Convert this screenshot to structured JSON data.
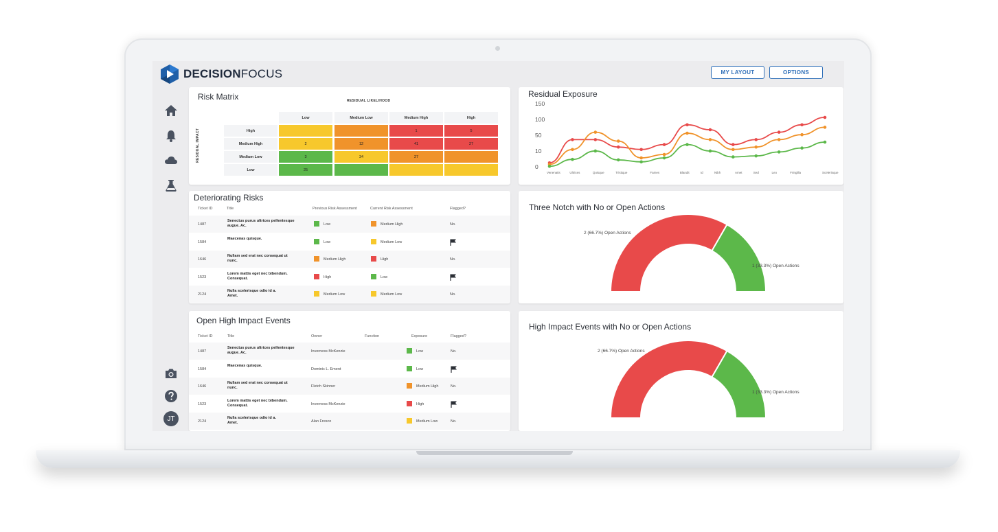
{
  "app": {
    "brand_bold": "DECISION",
    "brand_light": "FOCUS"
  },
  "header": {
    "my_layout": "MY LAYOUT",
    "options": "OPTIONS"
  },
  "user": {
    "initials": "JT"
  },
  "colors": {
    "red": "#e84a4a",
    "orange": "#f0932b",
    "yellow": "#f7c82c",
    "green": "#5cb84a",
    "accent": "#2f6fb8"
  },
  "risk_matrix": {
    "title": "Risk Matrix",
    "x_axis": "RESIDUAL LIKELIHOOD",
    "y_axis": "RESIDUAL IMPACT",
    "columns": [
      "Low",
      "Medium Low",
      "Medium High",
      "High"
    ],
    "rows": [
      {
        "label": "High",
        "cells": [
          {
            "v": "",
            "c": "yellow"
          },
          {
            "v": "",
            "c": "orange"
          },
          {
            "v": "1",
            "c": "red"
          },
          {
            "v": "5",
            "c": "red"
          }
        ]
      },
      {
        "label": "Medium High",
        "cells": [
          {
            "v": "2",
            "c": "yellow"
          },
          {
            "v": "12",
            "c": "orange"
          },
          {
            "v": "41",
            "c": "red"
          },
          {
            "v": "27",
            "c": "red"
          }
        ]
      },
      {
        "label": "Medium Low",
        "cells": [
          {
            "v": "3",
            "c": "green"
          },
          {
            "v": "34",
            "c": "yellow"
          },
          {
            "v": "27",
            "c": "orange"
          },
          {
            "v": "",
            "c": "orange"
          }
        ]
      },
      {
        "label": "Low",
        "cells": [
          {
            "v": "25",
            "c": "green"
          },
          {
            "v": "",
            "c": "green"
          },
          {
            "v": "",
            "c": "yellow"
          },
          {
            "v": "",
            "c": "yellow"
          }
        ]
      }
    ]
  },
  "residual_exposure": {
    "title": "Residual Exposure",
    "chart_data": {
      "type": "line",
      "y_ticks": [
        "150",
        "100",
        "50",
        "10",
        "0"
      ],
      "x": [
        "Venenatis",
        "Ultrices",
        "Quisque",
        "Tristique",
        "Fames",
        "Blandit",
        "Id",
        "Nibh",
        "Amet",
        "Sed",
        "Leo",
        "Fringilla",
        "Scelerisque"
      ],
      "series": [
        {
          "color": "red",
          "values": [
            8,
            55,
            55,
            40,
            35,
            45,
            85,
            75,
            45,
            55,
            70,
            85,
            100
          ]
        },
        {
          "color": "orange",
          "values": [
            5,
            35,
            70,
            52,
            18,
            25,
            68,
            55,
            35,
            40,
            55,
            65,
            80
          ]
        },
        {
          "color": "green",
          "values": [
            1,
            15,
            32,
            14,
            10,
            18,
            45,
            32,
            20,
            22,
            30,
            38,
            50
          ]
        }
      ],
      "label_x": [
        0,
        1,
        2,
        3,
        4.5,
        5.8,
        6.7,
        7.3,
        8.2,
        9,
        9.8,
        10.6,
        12
      ]
    }
  },
  "deteriorating": {
    "title": "Deteriorating Risks",
    "headers": [
      "Ticket ID",
      "Title",
      "Previous Risk Assessment",
      "Current Risk Assessment",
      "Flagged?"
    ],
    "rows": [
      {
        "id": "1487",
        "title1": "Senectus purus ultrices pellentesque",
        "title2": "augue. Ac.",
        "prev": "Low",
        "prev_c": "green",
        "curr": "Medium High",
        "curr_c": "orange",
        "flag": "No."
      },
      {
        "id": "1584",
        "title1": "Maecenas quisque.",
        "title2": "",
        "prev": "Low",
        "prev_c": "green",
        "curr": "Medium Low",
        "curr_c": "yellow",
        "flag": ""
      },
      {
        "id": "1646",
        "title1": "Nullam sed erat nec consequat ut",
        "title2": "nunc.",
        "prev": "Medium High",
        "prev_c": "orange",
        "curr": "High",
        "curr_c": "red",
        "flag": "No."
      },
      {
        "id": "1523",
        "title1": "Lorem mattis eget nec bibendum.",
        "title2": "Consequat.",
        "prev": "High",
        "prev_c": "red",
        "curr": "Low",
        "curr_c": "green",
        "flag": ""
      },
      {
        "id": "2124",
        "title1": "Nulla scelerisque odio id a.",
        "title2": "Amet.",
        "prev": "Medium Low",
        "prev_c": "yellow",
        "curr": "Medium Low",
        "curr_c": "yellow",
        "flag": "No."
      }
    ]
  },
  "open_events": {
    "title": "Open High Impact Events",
    "headers": [
      "Ticket ID",
      "Title",
      "Owner",
      "Function",
      "Exposure",
      "Flagged?"
    ],
    "rows": [
      {
        "id": "1487",
        "title1": "Senectus purus ultrices pellentesque",
        "title2": "augue. Ac.",
        "owner": "Inverness McKenzie",
        "exp": "Low",
        "exp_c": "green",
        "flag": "No."
      },
      {
        "id": "1584",
        "title1": "Maecenas quisque.",
        "title2": "",
        "owner": "Dominic L. Ement",
        "exp": "Low",
        "exp_c": "green",
        "flag": ""
      },
      {
        "id": "1646",
        "title1": "Nullam sed erat nec consequat ut",
        "title2": "nunc.",
        "owner": "Fletch Skinner",
        "exp": "Medium High",
        "exp_c": "orange",
        "flag": "No."
      },
      {
        "id": "1523",
        "title1": "Lorem mattis eget nec bibendum.",
        "title2": "Consequat.",
        "owner": "Inverness McKenzie",
        "exp": "High",
        "exp_c": "red",
        "flag": ""
      },
      {
        "id": "2124",
        "title1": "Nulla scelerisque odio id a.",
        "title2": "Amet.",
        "owner": "Alan Fresco",
        "exp": "Medium Low",
        "exp_c": "yellow",
        "flag": "No."
      }
    ]
  },
  "gauge1": {
    "title": "Three Notch with No or Open Actions",
    "chart_data": {
      "type": "pie",
      "slices": [
        {
          "label": "2 (66.7%) Open Actions",
          "value": 2,
          "color": "red"
        },
        {
          "label": "1 (33.3%) Open Actions",
          "value": 1,
          "color": "green"
        }
      ]
    }
  },
  "gauge2": {
    "title": "High Impact Events with No or Open Actions",
    "chart_data": {
      "type": "pie",
      "slices": [
        {
          "label": "2 (66.7%) Open Actions",
          "value": 2,
          "color": "red"
        },
        {
          "label": "1 (33.3%) Open Actions",
          "value": 1,
          "color": "green"
        }
      ]
    }
  }
}
